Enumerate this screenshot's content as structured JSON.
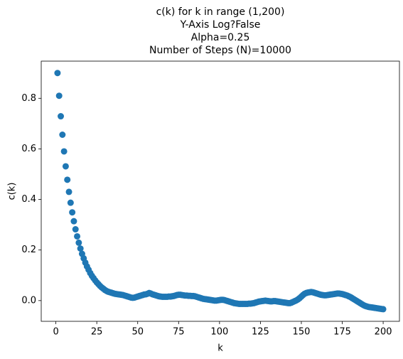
{
  "chart_data": {
    "type": "scatter",
    "title": [
      "c(k) for k in range (1,200)",
      "Y-Axis Log?False",
      "Alpha=0.25",
      "Number of Steps (N)=10000"
    ],
    "x_label": "k",
    "y_label": "c(k)",
    "color": "#1f77b4",
    "ylog": false,
    "grid": false,
    "xlim": [
      -8.95,
      209.95
    ],
    "ylim": [
      -0.082,
      0.947
    ],
    "xticks": [
      0,
      25,
      50,
      75,
      100,
      125,
      150,
      175,
      200
    ],
    "yticks": [
      {
        "value": 0,
        "label": "0.0"
      },
      0.2,
      0.4,
      0.6,
      0.8
    ],
    "x": [
      1,
      2,
      3,
      4,
      5,
      6,
      7,
      8,
      9,
      10,
      11,
      12,
      13,
      14,
      15,
      16,
      17,
      18,
      19,
      20,
      21,
      22,
      23,
      24,
      25,
      26,
      27,
      28,
      29,
      30,
      31,
      32,
      33,
      34,
      35,
      36,
      37,
      38,
      39,
      40,
      41,
      42,
      43,
      44,
      45,
      46,
      47,
      48,
      49,
      50,
      51,
      52,
      53,
      54,
      55,
      56,
      57,
      58,
      59,
      60,
      61,
      62,
      63,
      64,
      65,
      66,
      67,
      68,
      69,
      70,
      71,
      72,
      73,
      74,
      75,
      76,
      77,
      78,
      79,
      80,
      81,
      82,
      83,
      84,
      85,
      86,
      87,
      88,
      89,
      90,
      91,
      92,
      93,
      94,
      95,
      96,
      97,
      98,
      99,
      100,
      101,
      102,
      103,
      104,
      105,
      106,
      107,
      108,
      109,
      110,
      111,
      112,
      113,
      114,
      115,
      116,
      117,
      118,
      119,
      120,
      121,
      122,
      123,
      124,
      125,
      126,
      127,
      128,
      129,
      130,
      131,
      132,
      133,
      134,
      135,
      136,
      137,
      138,
      139,
      140,
      141,
      142,
      143,
      144,
      145,
      146,
      147,
      148,
      149,
      150,
      151,
      152,
      153,
      154,
      155,
      156,
      157,
      158,
      159,
      160,
      161,
      162,
      163,
      164,
      165,
      166,
      167,
      168,
      169,
      170,
      171,
      172,
      173,
      174,
      175,
      176,
      177,
      178,
      179,
      180,
      181,
      182,
      183,
      184,
      185,
      186,
      187,
      188,
      189,
      190,
      191,
      192,
      193,
      194,
      195,
      196,
      197,
      198,
      199,
      200
    ],
    "values": [
      0.9,
      0.81,
      0.729,
      0.656,
      0.59,
      0.531,
      0.478,
      0.43,
      0.387,
      0.349,
      0.314,
      0.282,
      0.254,
      0.229,
      0.206,
      0.185,
      0.167,
      0.15,
      0.135,
      0.122,
      0.109,
      0.098,
      0.089,
      0.08,
      0.072,
      0.065,
      0.058,
      0.052,
      0.047,
      0.042,
      0.038,
      0.035,
      0.033,
      0.031,
      0.029,
      0.027,
      0.026,
      0.025,
      0.024,
      0.023,
      0.022,
      0.02,
      0.018,
      0.016,
      0.014,
      0.012,
      0.011,
      0.012,
      0.014,
      0.016,
      0.018,
      0.02,
      0.022,
      0.024,
      0.025,
      0.027,
      0.03,
      0.028,
      0.025,
      0.023,
      0.021,
      0.019,
      0.017,
      0.016,
      0.015,
      0.015,
      0.015,
      0.015,
      0.016,
      0.016,
      0.017,
      0.018,
      0.02,
      0.022,
      0.023,
      0.023,
      0.022,
      0.021,
      0.02,
      0.02,
      0.019,
      0.019,
      0.018,
      0.018,
      0.017,
      0.015,
      0.013,
      0.011,
      0.009,
      0.007,
      0.006,
      0.005,
      0.004,
      0.003,
      0.002,
      0.001,
      0.0,
      0.0,
      0.001,
      0.002,
      0.003,
      0.003,
      0.002,
      0.0,
      -0.002,
      -0.004,
      -0.006,
      -0.008,
      -0.01,
      -0.011,
      -0.012,
      -0.013,
      -0.013,
      -0.013,
      -0.013,
      -0.013,
      -0.013,
      -0.012,
      -0.012,
      -0.011,
      -0.01,
      -0.008,
      -0.006,
      -0.004,
      -0.003,
      -0.002,
      -0.001,
      0.0,
      -0.001,
      -0.002,
      -0.003,
      -0.003,
      -0.002,
      -0.002,
      -0.003,
      -0.004,
      -0.005,
      -0.006,
      -0.007,
      -0.008,
      -0.009,
      -0.01,
      -0.01,
      -0.008,
      -0.005,
      -0.002,
      0.001,
      0.005,
      0.01,
      0.016,
      0.022,
      0.027,
      0.03,
      0.032,
      0.033,
      0.034,
      0.033,
      0.031,
      0.029,
      0.027,
      0.025,
      0.023,
      0.022,
      0.021,
      0.021,
      0.022,
      0.023,
      0.024,
      0.025,
      0.026,
      0.027,
      0.028,
      0.028,
      0.027,
      0.026,
      0.024,
      0.022,
      0.02,
      0.017,
      0.014,
      0.01,
      0.006,
      0.002,
      -0.002,
      -0.006,
      -0.01,
      -0.014,
      -0.018,
      -0.021,
      -0.023,
      -0.025,
      -0.026,
      -0.027,
      -0.028,
      -0.029,
      -0.03,
      -0.031,
      -0.032,
      -0.033,
      -0.034
    ]
  }
}
